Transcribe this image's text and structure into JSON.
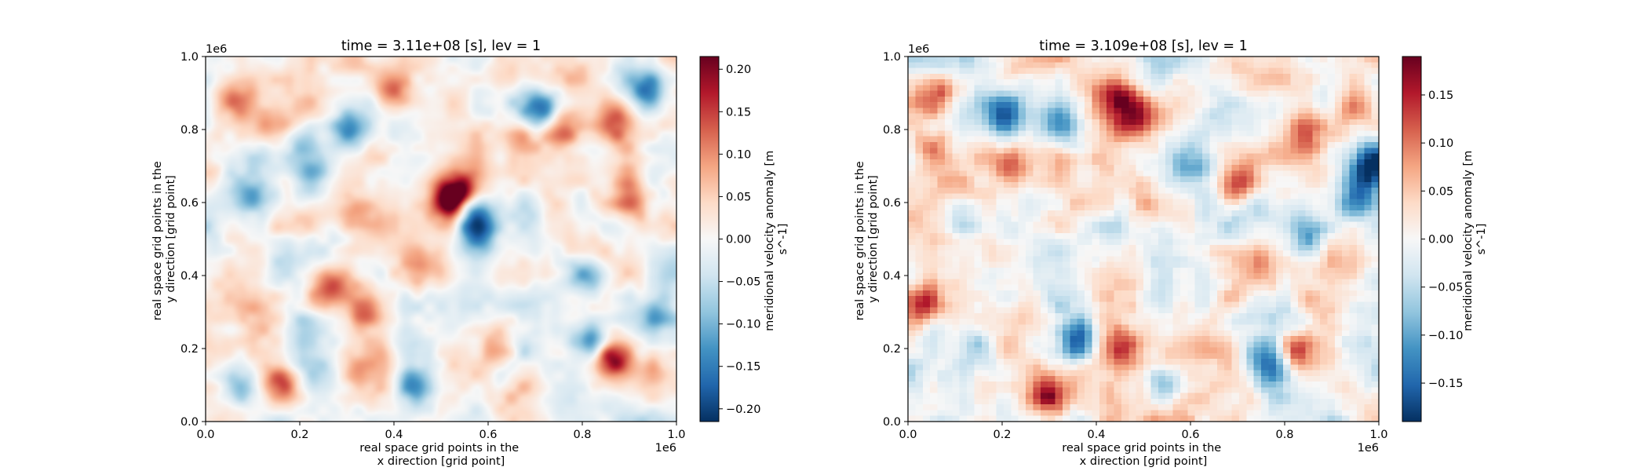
{
  "figure": {
    "background": "#ffffff"
  },
  "chart_data": [
    {
      "type": "heatmap",
      "title": "time = 3.11e+08 [s], lev = 1",
      "xlabel_lines": [
        "real space grid points in the",
        "x direction [grid point]"
      ],
      "ylabel_lines": [
        "real space grid points in the",
        "y direction [grid point]"
      ],
      "x_ticks": [
        "0.0",
        "0.2",
        "0.4",
        "0.6",
        "0.8",
        "1.0"
      ],
      "y_ticks": [
        "0.0",
        "0.2",
        "0.4",
        "0.6",
        "0.8",
        "1.0"
      ],
      "x_tick_values": [
        0.0,
        0.2,
        0.4,
        0.6,
        0.8,
        1.0
      ],
      "y_tick_values": [
        0.0,
        0.2,
        0.4,
        0.6,
        0.8,
        1.0
      ],
      "x_offset": "1e6",
      "y_offset": "1e6",
      "xlim": [
        0.0,
        1.0
      ],
      "ylim": [
        0.0,
        1.0
      ],
      "colormap": "RdBu_r",
      "field_style": "smooth",
      "grid": false,
      "colorbar": {
        "label_lines": [
          "meridional velocity anomaly [m",
          "s^-1]"
        ],
        "range": [
          -0.215,
          0.215
        ],
        "ticks": [
          "−0.20",
          "−0.15",
          "−0.10",
          "−0.05",
          "0.00",
          "0.05",
          "0.10",
          "0.15",
          "0.20"
        ],
        "tick_values": [
          -0.2,
          -0.15,
          -0.1,
          -0.05,
          0.0,
          0.05,
          0.1,
          0.15,
          0.2
        ],
        "placement": "right"
      },
      "features": [
        {
          "x": 0.06,
          "y": 0.88,
          "value": 0.13
        },
        {
          "x": 0.1,
          "y": 0.62,
          "value": -0.12
        },
        {
          "x": 0.16,
          "y": 0.8,
          "value": 0.1
        },
        {
          "x": 0.2,
          "y": 0.77,
          "value": -0.1
        },
        {
          "x": 0.23,
          "y": 0.68,
          "value": -0.1
        },
        {
          "x": 0.24,
          "y": 0.34,
          "value": 0.09
        },
        {
          "x": 0.27,
          "y": 0.38,
          "value": 0.14
        },
        {
          "x": 0.3,
          "y": 0.8,
          "value": -0.1
        },
        {
          "x": 0.32,
          "y": 0.57,
          "value": 0.1
        },
        {
          "x": 0.34,
          "y": 0.3,
          "value": 0.1
        },
        {
          "x": 0.38,
          "y": 0.14,
          "value": 0.08
        },
        {
          "x": 0.4,
          "y": 0.9,
          "value": 0.12
        },
        {
          "x": 0.47,
          "y": 0.42,
          "value": 0.09
        },
        {
          "x": 0.52,
          "y": 0.6,
          "value": 0.2
        },
        {
          "x": 0.54,
          "y": 0.63,
          "value": 0.18
        },
        {
          "x": 0.56,
          "y": 0.58,
          "value": -0.19
        },
        {
          "x": 0.58,
          "y": 0.52,
          "value": -0.15
        },
        {
          "x": 0.62,
          "y": 0.2,
          "value": 0.1
        },
        {
          "x": 0.67,
          "y": 0.8,
          "value": 0.11
        },
        {
          "x": 0.7,
          "y": 0.85,
          "value": -0.16
        },
        {
          "x": 0.76,
          "y": 0.8,
          "value": 0.12
        },
        {
          "x": 0.8,
          "y": 0.4,
          "value": -0.14
        },
        {
          "x": 0.82,
          "y": 0.22,
          "value": -0.18
        },
        {
          "x": 0.86,
          "y": 0.18,
          "value": 0.21
        },
        {
          "x": 0.88,
          "y": 0.82,
          "value": 0.14
        },
        {
          "x": 0.9,
          "y": 0.6,
          "value": 0.16
        },
        {
          "x": 0.94,
          "y": 0.9,
          "value": -0.15
        },
        {
          "x": 0.96,
          "y": 0.3,
          "value": -0.1
        },
        {
          "x": 0.16,
          "y": 0.1,
          "value": 0.16
        },
        {
          "x": 0.07,
          "y": 0.1,
          "value": -0.1
        },
        {
          "x": 0.44,
          "y": 0.1,
          "value": -0.12
        },
        {
          "x": 0.68,
          "y": 0.1,
          "value": 0.1
        }
      ]
    },
    {
      "type": "heatmap",
      "title": "time = 3.109e+08 [s], lev = 1",
      "xlabel_lines": [
        "real space grid points in the",
        "x direction [grid point]"
      ],
      "ylabel_lines": [
        "real space grid points in the",
        "y direction [grid point]"
      ],
      "x_ticks": [
        "0.0",
        "0.2",
        "0.4",
        "0.6",
        "0.8",
        "1.0"
      ],
      "y_ticks": [
        "0.0",
        "0.2",
        "0.4",
        "0.6",
        "0.8",
        "1.0"
      ],
      "x_tick_values": [
        0.0,
        0.2,
        0.4,
        0.6,
        0.8,
        1.0
      ],
      "y_tick_values": [
        0.0,
        0.2,
        0.4,
        0.6,
        0.8,
        1.0
      ],
      "x_offset": "1e6",
      "y_offset": "1e6",
      "xlim": [
        0.0,
        1.0
      ],
      "ylim": [
        0.0,
        1.0
      ],
      "colormap": "RdBu_r",
      "field_style": "pixelated",
      "grid": false,
      "colorbar": {
        "label_lines": [
          "meridional velocity anomaly [m",
          "s^-1]"
        ],
        "range": [
          -0.19,
          0.19
        ],
        "ticks": [
          "−0.15",
          "−0.10",
          "−0.05",
          "0.00",
          "0.05",
          "0.10",
          "0.15"
        ],
        "tick_values": [
          -0.15,
          -0.1,
          -0.05,
          0.0,
          0.05,
          0.1,
          0.15
        ],
        "placement": "right"
      },
      "features": [
        {
          "x": 0.03,
          "y": 0.32,
          "value": 0.15
        },
        {
          "x": 0.05,
          "y": 0.75,
          "value": 0.1
        },
        {
          "x": 0.12,
          "y": 0.55,
          "value": -0.1
        },
        {
          "x": 0.2,
          "y": 0.85,
          "value": -0.12
        },
        {
          "x": 0.22,
          "y": 0.7,
          "value": 0.09
        },
        {
          "x": 0.3,
          "y": 0.07,
          "value": 0.18
        },
        {
          "x": 0.33,
          "y": 0.8,
          "value": -0.12
        },
        {
          "x": 0.36,
          "y": 0.22,
          "value": -0.14
        },
        {
          "x": 0.44,
          "y": 0.9,
          "value": 0.13
        },
        {
          "x": 0.45,
          "y": 0.2,
          "value": 0.09
        },
        {
          "x": 0.48,
          "y": 0.83,
          "value": 0.12
        },
        {
          "x": 0.5,
          "y": 0.6,
          "value": 0.1
        },
        {
          "x": 0.55,
          "y": 0.1,
          "value": -0.1
        },
        {
          "x": 0.62,
          "y": 0.7,
          "value": -0.11
        },
        {
          "x": 0.7,
          "y": 0.65,
          "value": 0.14
        },
        {
          "x": 0.74,
          "y": 0.4,
          "value": 0.08
        },
        {
          "x": 0.76,
          "y": 0.15,
          "value": -0.12
        },
        {
          "x": 0.82,
          "y": 0.2,
          "value": 0.16
        },
        {
          "x": 0.84,
          "y": 0.8,
          "value": 0.12
        },
        {
          "x": 0.86,
          "y": 0.5,
          "value": -0.1
        },
        {
          "x": 0.88,
          "y": 0.3,
          "value": 0.08
        },
        {
          "x": 0.94,
          "y": 0.85,
          "value": 0.1
        },
        {
          "x": 0.98,
          "y": 0.7,
          "value": -0.17
        },
        {
          "x": 0.95,
          "y": 0.6,
          "value": -0.13
        },
        {
          "x": 0.07,
          "y": 0.9,
          "value": 0.11
        },
        {
          "x": 0.15,
          "y": 0.2,
          "value": -0.09
        }
      ]
    }
  ]
}
